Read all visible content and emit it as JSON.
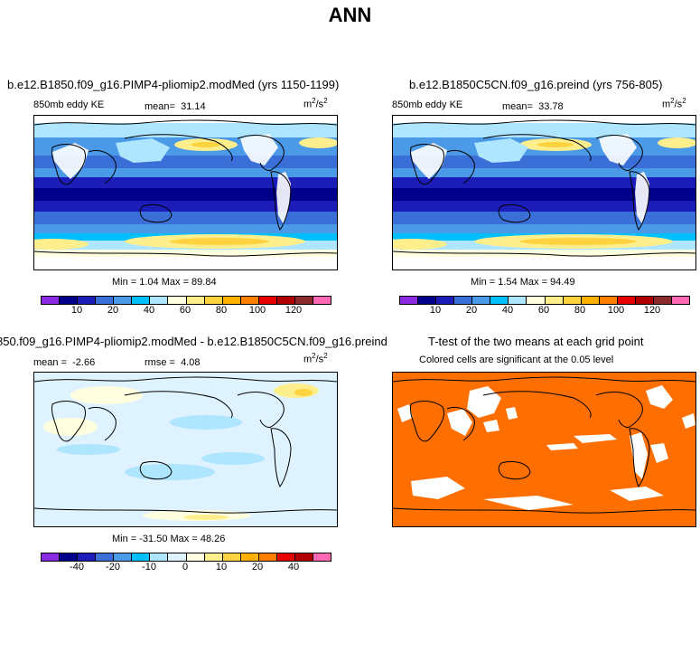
{
  "title": "ANN",
  "panels": [
    {
      "title": "b.e12.B1850.f09_g16.PIMP4-pliomip2.modMed (yrs 1150-1199)",
      "left_label": "850mb eddy KE",
      "mean_label": "mean=",
      "mean_value": "31.14",
      "units": "m",
      "units_sup1": "2",
      "units_mid": "/s",
      "units_sup2": "2",
      "minmax": "Min =    1.04 Max =   89.84",
      "cbar_ticks": [
        "10",
        "20",
        "40",
        "60",
        "80",
        "100",
        "120"
      ]
    },
    {
      "title": "b.e12.B1850C5CN.f09_g16.preind (yrs 756-805)",
      "left_label": "850mb eddy KE",
      "mean_label": "mean=",
      "mean_value": "33.78",
      "units": "m",
      "units_sup1": "2",
      "units_mid": "/s",
      "units_sup2": "2",
      "minmax": "Min =    1.54 Max =   94.49",
      "cbar_ticks": [
        "10",
        "20",
        "40",
        "60",
        "80",
        "100",
        "120"
      ]
    },
    {
      "title": "850.f09_g16.PIMP4-pliomip2.modMed - b.e12.B1850C5CN.f09_g16.preind",
      "mean_label": "mean =",
      "mean_value": "-2.66",
      "rmse_label": "rmse =",
      "rmse_value": "4.08",
      "units": "m",
      "units_sup1": "2",
      "units_mid": "/s",
      "units_sup2": "2",
      "minmax": "Min = -31.50 Max =   48.26",
      "cbar_ticks": [
        "-40",
        "-20",
        "-10",
        "0",
        "10",
        "20",
        "40"
      ]
    },
    {
      "title": "T-test of the two means at each grid point",
      "subtitle": "Colored cells are significant at the 0.05 level"
    }
  ],
  "colors": {
    "abs_scale": [
      "#8a2be2",
      "#00008b",
      "#1c1cb8",
      "#3a6fd8",
      "#4a9ae8",
      "#00bfff",
      "#aee6ff",
      "#ffffe0",
      "#ffee8c",
      "#ffd23f",
      "#ffb000",
      "#ff7f00",
      "#e60000",
      "#b00000",
      "#8b2a2a",
      "#ff69b4"
    ],
    "diff_scale": [
      "#8a2be2",
      "#00008b",
      "#1c1cb8",
      "#3a6fd8",
      "#4a9ae8",
      "#00bfff",
      "#aee6ff",
      "#dff2ff",
      "#ffffe0",
      "#ffee8c",
      "#ffd23f",
      "#ffb000",
      "#ff7f00",
      "#e60000",
      "#b00000",
      "#ff69b4"
    ],
    "ttest": "#ff6f00"
  }
}
